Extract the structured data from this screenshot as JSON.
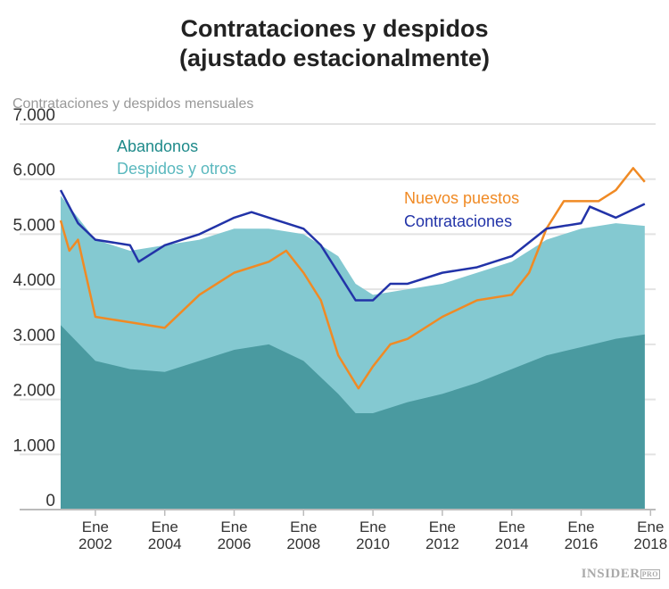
{
  "chart_data": {
    "type": "area",
    "title": "Contrataciones y despidos\n(ajustado estacionalmente)",
    "title_lines": [
      "Contrataciones y despidos",
      "(ajustado estacionalmente)"
    ],
    "ylabel": "Contrataciones y despidos mensuales",
    "ylim": [
      0,
      7000
    ],
    "yticks": [
      "0",
      "1.000",
      "2.000",
      "3.000",
      "4.000",
      "5.000",
      "6.000",
      "7.000"
    ],
    "xticks": [
      {
        "line1": "Ene",
        "line2": "2002",
        "year": 2002
      },
      {
        "line1": "Ene",
        "line2": "2004",
        "year": 2004
      },
      {
        "line1": "Ene",
        "line2": "2006",
        "year": 2006
      },
      {
        "line1": "Ene",
        "line2": "2008",
        "year": 2008
      },
      {
        "line1": "Ene",
        "line2": "2010",
        "year": 2010
      },
      {
        "line1": "Ene",
        "line2": "2012",
        "year": 2012
      },
      {
        "line1": "Ene",
        "line2": "2014",
        "year": 2014
      },
      {
        "line1": "Ene",
        "line2": "2016",
        "year": 2016
      },
      {
        "line1": "Ene",
        "line2": "2018",
        "year": 2018
      }
    ],
    "grid": true,
    "series": [
      {
        "name": "Despidos y otros",
        "kind": "area",
        "color": "#84c9d1",
        "label_color": "#5ab8be",
        "x": [
          "2001-01",
          "2001-07",
          "2002-01",
          "2003-01",
          "2004-01",
          "2005-01",
          "2006-01",
          "2007-01",
          "2008-01",
          "2008-07",
          "2009-01",
          "2009-07",
          "2010-01",
          "2011-01",
          "2012-01",
          "2013-01",
          "2014-01",
          "2015-01",
          "2016-01",
          "2017-01",
          "2017-11"
        ],
        "values": [
          5700,
          5300,
          4900,
          4700,
          4800,
          4900,
          5100,
          5100,
          5000,
          4800,
          4600,
          4100,
          3900,
          4000,
          4100,
          4300,
          4500,
          4900,
          5100,
          5200,
          5150
        ]
      },
      {
        "name": "Abandonos",
        "kind": "area",
        "color": "#4a9aa0",
        "label_color": "#1e8a8a",
        "x": [
          "2001-01",
          "2002-01",
          "2003-01",
          "2004-01",
          "2005-01",
          "2006-01",
          "2007-01",
          "2008-01",
          "2009-01",
          "2009-07",
          "2010-01",
          "2011-01",
          "2012-01",
          "2013-01",
          "2014-01",
          "2015-01",
          "2016-01",
          "2017-01",
          "2017-11"
        ],
        "values": [
          3350,
          2700,
          2550,
          2500,
          2700,
          2900,
          3000,
          2700,
          2100,
          1750,
          1750,
          1950,
          2100,
          2300,
          2550,
          2800,
          2950,
          3100,
          3180
        ]
      },
      {
        "name": "Nuevos puestos",
        "kind": "line",
        "color": "#f08a24",
        "label_color": "#f08a24",
        "x": [
          "2001-01",
          "2001-04",
          "2001-07",
          "2002-01",
          "2003-01",
          "2004-01",
          "2005-01",
          "2006-01",
          "2007-01",
          "2007-07",
          "2008-01",
          "2008-07",
          "2009-01",
          "2009-08",
          "2010-01",
          "2010-07",
          "2011-01",
          "2012-01",
          "2013-01",
          "2014-01",
          "2014-07",
          "2015-01",
          "2015-07",
          "2016-01",
          "2016-07",
          "2017-01",
          "2017-07",
          "2017-11"
        ],
        "values": [
          5250,
          4700,
          4900,
          3500,
          3400,
          3300,
          3900,
          4300,
          4500,
          4700,
          4300,
          3800,
          2800,
          2200,
          2600,
          3000,
          3100,
          3500,
          3800,
          3900,
          4300,
          5100,
          5600,
          5600,
          5600,
          5800,
          6200,
          5950
        ]
      },
      {
        "name": "Contrataciones",
        "kind": "line",
        "color": "#2233a8",
        "label_color": "#2233a8",
        "x": [
          "2001-01",
          "2001-07",
          "2002-01",
          "2003-01",
          "2003-04",
          "2004-01",
          "2005-01",
          "2006-01",
          "2006-07",
          "2007-01",
          "2008-01",
          "2008-07",
          "2009-01",
          "2009-07",
          "2010-01",
          "2010-07",
          "2011-01",
          "2012-01",
          "2013-01",
          "2014-01",
          "2015-01",
          "2016-01",
          "2016-04",
          "2017-01",
          "2017-11"
        ],
        "values": [
          5800,
          5200,
          4900,
          4800,
          4500,
          4800,
          5000,
          5300,
          5400,
          5300,
          5100,
          4800,
          4300,
          3800,
          3800,
          4100,
          4100,
          4300,
          4400,
          4600,
          5100,
          5200,
          5500,
          5300,
          5550
        ]
      }
    ]
  },
  "branding": {
    "logo_main": "INSIDER",
    "logo_sub": "PRO"
  }
}
